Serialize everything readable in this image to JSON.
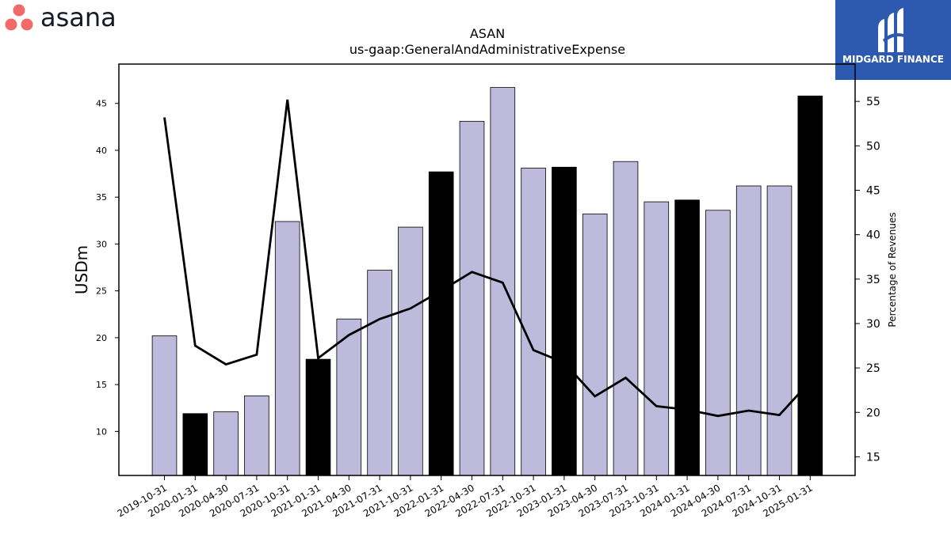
{
  "logo": {
    "text": "asana",
    "colors": {
      "dots": "#f06a6a",
      "text": "#151b26"
    }
  },
  "brand": {
    "text": "MIDGARD FINANCE",
    "background": "#2d5ab0"
  },
  "chart_data": {
    "type": "bar",
    "title": "ASAN",
    "subtitle": "us-gaap:GeneralAndAdministrativeExpense",
    "ylabel": "USDm",
    "y2label": "Percentage of Revenues",
    "ylim": [
      5.3,
      49.2
    ],
    "y2lim": [
      12.9,
      59.2
    ],
    "yticks": [
      10,
      15,
      20,
      25,
      30,
      35,
      40,
      45
    ],
    "y2ticks": [
      15,
      20,
      25,
      30,
      35,
      40,
      45,
      50,
      55
    ],
    "categories": [
      "2019-10-31",
      "2020-01-31",
      "2020-04-30",
      "2020-07-31",
      "2020-10-31",
      "2021-01-31",
      "2021-04-30",
      "2021-07-31",
      "2021-10-31",
      "2022-01-31",
      "2022-04-30",
      "2022-07-31",
      "2022-10-31",
      "2023-01-31",
      "2023-04-30",
      "2023-07-31",
      "2023-10-31",
      "2024-01-31",
      "2024-04-30",
      "2024-07-31",
      "2024-10-31",
      "2025-01-31"
    ],
    "series": [
      {
        "kind": "bar",
        "values": [
          20.2,
          11.9,
          12.1,
          13.8,
          32.4,
          17.7,
          22.0,
          27.2,
          31.8,
          37.7,
          43.1,
          46.7,
          38.1,
          38.2,
          33.2,
          38.8,
          34.5,
          34.7,
          33.6,
          36.2,
          36.2,
          45.8
        ],
        "highlight": [
          false,
          true,
          false,
          false,
          false,
          true,
          false,
          false,
          false,
          true,
          false,
          false,
          false,
          true,
          false,
          false,
          false,
          true,
          false,
          false,
          false,
          true
        ]
      },
      {
        "kind": "line",
        "axis": "right",
        "values": [
          53.2,
          27.5,
          25.4,
          26.5,
          55.2,
          26.1,
          28.7,
          30.5,
          31.7,
          33.7,
          35.8,
          34.6,
          27.0,
          25.6,
          21.8,
          23.9,
          20.7,
          20.3,
          19.6,
          20.2,
          19.7,
          23.5
        ]
      }
    ],
    "colors": {
      "bar": "#bdbadb",
      "bar_highlight": "#000000",
      "line": "#000000"
    },
    "grid": false
  }
}
